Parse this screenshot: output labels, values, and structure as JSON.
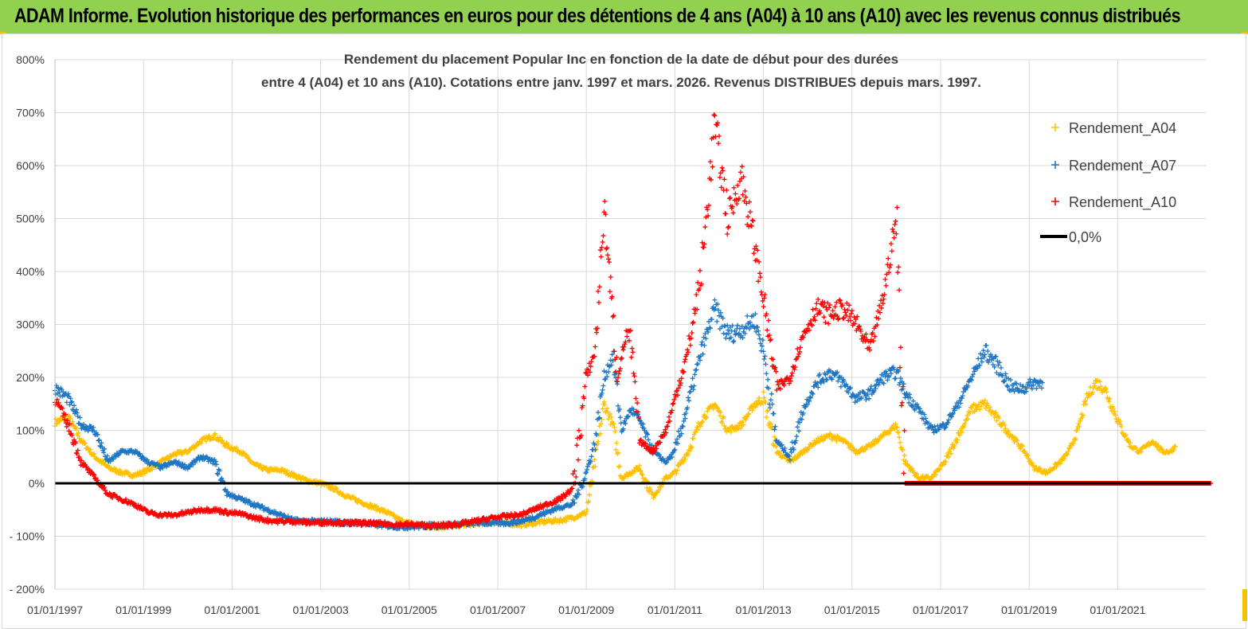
{
  "header": {
    "title": "ADAM Informe. Evolution historique des performances en euros pour des détentions de 4 ans (A04) à 10 ans (A10) avec les revenus connus distribués"
  },
  "colors": {
    "header_bg": "#92d050",
    "A04": "#ffc000",
    "A07": "#1f77c4",
    "A10": "#ff0000",
    "zero": "#000000"
  },
  "chart_data": {
    "type": "scatter",
    "title_line1": "Rendement du placement Popular Inc en fonction de la date de début pour des durées",
    "title_line2": "entre 4 (A04) et 10 ans (A10). Cotations entre janv. 1997 et mars. 2026. Revenus DISTRIBUES depuis mars. 1997.",
    "x_range": [
      1997.0,
      2023.1
    ],
    "ylim": [
      -200,
      800
    ],
    "y_ticks": [
      -200,
      -100,
      0,
      100,
      200,
      300,
      400,
      500,
      600,
      700,
      800
    ],
    "y_tick_labels": [
      "- 200%",
      "- 100%",
      "0%",
      "100%",
      "200%",
      "300%",
      "400%",
      "500%",
      "600%",
      "700%",
      "800%"
    ],
    "x_ticks": [
      1997,
      1999,
      2001,
      2003,
      2005,
      2007,
      2009,
      2011,
      2013,
      2015,
      2017,
      2019,
      2021
    ],
    "x_tick_labels": [
      "01/01/1997",
      "01/01/1999",
      "01/01/2001",
      "01/01/2003",
      "01/01/2005",
      "01/01/2007",
      "01/01/2009",
      "01/01/2011",
      "01/01/2013",
      "01/01/2015",
      "01/01/2017",
      "01/01/2019",
      "01/01/2021"
    ],
    "marker": "+",
    "legend_position": "top-right",
    "legend": [
      {
        "key": "A04",
        "label": "Rendement_A04",
        "style": "marker"
      },
      {
        "key": "A07",
        "label": "Rendement_A07",
        "style": "marker"
      },
      {
        "key": "A10",
        "label": "Rendement_A10",
        "style": "marker"
      },
      {
        "key": "zero",
        "label": "0,0%",
        "style": "line"
      }
    ],
    "series": [
      {
        "name": "Rendement_A04",
        "key": "A04",
        "points": [
          [
            1997.0,
            115
          ],
          [
            1997.3,
            125
          ],
          [
            1997.6,
            80
          ],
          [
            1997.9,
            50
          ],
          [
            1998.2,
            30
          ],
          [
            1998.5,
            20
          ],
          [
            1998.8,
            15
          ],
          [
            1999.1,
            25
          ],
          [
            1999.4,
            40
          ],
          [
            1999.7,
            55
          ],
          [
            2000.0,
            60
          ],
          [
            2000.3,
            80
          ],
          [
            2000.6,
            90
          ],
          [
            2000.9,
            70
          ],
          [
            2001.2,
            60
          ],
          [
            2001.5,
            35
          ],
          [
            2001.8,
            25
          ],
          [
            2002.1,
            25
          ],
          [
            2002.4,
            15
          ],
          [
            2002.7,
            5
          ],
          [
            2003.0,
            0
          ],
          [
            2003.3,
            -10
          ],
          [
            2003.6,
            -25
          ],
          [
            2003.9,
            -35
          ],
          [
            2004.2,
            -45
          ],
          [
            2004.5,
            -55
          ],
          [
            2004.8,
            -70
          ],
          [
            2005.1,
            -78
          ],
          [
            2005.4,
            -80
          ],
          [
            2005.7,
            -82
          ],
          [
            2006.0,
            -80
          ],
          [
            2006.3,
            -78
          ],
          [
            2006.6,
            -75
          ],
          [
            2006.9,
            -73
          ],
          [
            2007.2,
            -75
          ],
          [
            2007.5,
            -78
          ],
          [
            2007.8,
            -75
          ],
          [
            2008.1,
            -72
          ],
          [
            2008.4,
            -70
          ],
          [
            2008.7,
            -65
          ],
          [
            2009.0,
            -55
          ],
          [
            2009.2,
            40
          ],
          [
            2009.4,
            150
          ],
          [
            2009.6,
            110
          ],
          [
            2009.8,
            10
          ],
          [
            2010.0,
            20
          ],
          [
            2010.2,
            30
          ],
          [
            2010.5,
            -25
          ],
          [
            2010.8,
            10
          ],
          [
            2011.0,
            20
          ],
          [
            2011.3,
            60
          ],
          [
            2011.6,
            120
          ],
          [
            2011.9,
            150
          ],
          [
            2012.2,
            100
          ],
          [
            2012.5,
            110
          ],
          [
            2012.8,
            150
          ],
          [
            2013.0,
            160
          ],
          [
            2013.3,
            60
          ],
          [
            2013.6,
            40
          ],
          [
            2013.9,
            60
          ],
          [
            2014.2,
            80
          ],
          [
            2014.5,
            90
          ],
          [
            2014.8,
            80
          ],
          [
            2015.1,
            60
          ],
          [
            2015.4,
            70
          ],
          [
            2015.7,
            90
          ],
          [
            2016.0,
            110
          ],
          [
            2016.2,
            40
          ],
          [
            2016.5,
            10
          ],
          [
            2016.8,
            10
          ],
          [
            2017.1,
            40
          ],
          [
            2017.4,
            90
          ],
          [
            2017.7,
            140
          ],
          [
            2018.0,
            150
          ],
          [
            2018.3,
            120
          ],
          [
            2018.6,
            90
          ],
          [
            2018.9,
            60
          ],
          [
            2019.1,
            30
          ],
          [
            2019.4,
            20
          ],
          [
            2019.7,
            40
          ],
          [
            2019.9,
            60
          ],
          [
            2020.1,
            100
          ],
          [
            2020.3,
            160
          ],
          [
            2020.5,
            190
          ],
          [
            2020.7,
            180
          ],
          [
            2020.9,
            140
          ],
          [
            2021.1,
            100
          ],
          [
            2021.3,
            70
          ],
          [
            2021.5,
            60
          ],
          [
            2021.8,
            80
          ],
          [
            2022.0,
            60
          ],
          [
            2022.2,
            60
          ],
          [
            2022.3,
            70
          ]
        ]
      },
      {
        "name": "Rendement_A07",
        "key": "A07",
        "points": [
          [
            1997.0,
            180
          ],
          [
            1997.3,
            160
          ],
          [
            1997.6,
            110
          ],
          [
            1997.9,
            100
          ],
          [
            1998.2,
            40
          ],
          [
            1998.5,
            60
          ],
          [
            1998.8,
            60
          ],
          [
            1999.1,
            40
          ],
          [
            1999.4,
            30
          ],
          [
            1999.7,
            40
          ],
          [
            2000.0,
            30
          ],
          [
            2000.3,
            50
          ],
          [
            2000.6,
            40
          ],
          [
            2000.9,
            -20
          ],
          [
            2001.2,
            -30
          ],
          [
            2001.5,
            -40
          ],
          [
            2001.8,
            -50
          ],
          [
            2002.1,
            -60
          ],
          [
            2002.4,
            -70
          ],
          [
            2002.7,
            -72
          ],
          [
            2003.0,
            -72
          ],
          [
            2003.3,
            -72
          ],
          [
            2003.6,
            -75
          ],
          [
            2003.9,
            -75
          ],
          [
            2004.2,
            -78
          ],
          [
            2004.5,
            -80
          ],
          [
            2004.8,
            -82
          ],
          [
            2005.1,
            -82
          ],
          [
            2005.4,
            -80
          ],
          [
            2005.7,
            -80
          ],
          [
            2006.0,
            -78
          ],
          [
            2006.3,
            -76
          ],
          [
            2006.6,
            -75
          ],
          [
            2006.9,
            -75
          ],
          [
            2007.2,
            -75
          ],
          [
            2007.5,
            -72
          ],
          [
            2007.8,
            -65
          ],
          [
            2008.1,
            -55
          ],
          [
            2008.4,
            -45
          ],
          [
            2008.7,
            -40
          ],
          [
            2009.0,
            20
          ],
          [
            2009.2,
            80
          ],
          [
            2009.4,
            200
          ],
          [
            2009.6,
            240
          ],
          [
            2009.8,
            100
          ],
          [
            2010.0,
            140
          ],
          [
            2010.2,
            120
          ],
          [
            2010.5,
            60
          ],
          [
            2010.8,
            40
          ],
          [
            2011.0,
            60
          ],
          [
            2011.3,
            150
          ],
          [
            2011.6,
            250
          ],
          [
            2011.9,
            330
          ],
          [
            2012.2,
            280
          ],
          [
            2012.5,
            290
          ],
          [
            2012.8,
            310
          ],
          [
            2013.0,
            250
          ],
          [
            2013.3,
            80
          ],
          [
            2013.6,
            50
          ],
          [
            2013.9,
            140
          ],
          [
            2014.2,
            190
          ],
          [
            2014.5,
            210
          ],
          [
            2014.8,
            190
          ],
          [
            2015.1,
            160
          ],
          [
            2015.4,
            170
          ],
          [
            2015.7,
            200
          ],
          [
            2016.0,
            210
          ],
          [
            2016.2,
            170
          ],
          [
            2016.5,
            140
          ],
          [
            2016.8,
            100
          ],
          [
            2017.1,
            110
          ],
          [
            2017.4,
            150
          ],
          [
            2017.7,
            200
          ],
          [
            2018.0,
            250
          ],
          [
            2018.3,
            220
          ],
          [
            2018.6,
            180
          ],
          [
            2018.9,
            180
          ],
          [
            2019.1,
            190
          ],
          [
            2019.3,
            190
          ]
        ]
      },
      {
        "name": "Rendement_A10",
        "key": "A10",
        "points": [
          [
            1997.0,
            160
          ],
          [
            1997.3,
            110
          ],
          [
            1997.6,
            40
          ],
          [
            1997.9,
            10
          ],
          [
            1998.2,
            -20
          ],
          [
            1998.5,
            -30
          ],
          [
            1998.8,
            -40
          ],
          [
            1999.1,
            -55
          ],
          [
            1999.4,
            -60
          ],
          [
            1999.7,
            -60
          ],
          [
            2000.0,
            -55
          ],
          [
            2000.3,
            -50
          ],
          [
            2000.6,
            -50
          ],
          [
            2000.9,
            -55
          ],
          [
            2001.2,
            -58
          ],
          [
            2001.5,
            -65
          ],
          [
            2001.8,
            -70
          ],
          [
            2002.1,
            -72
          ],
          [
            2002.4,
            -72
          ],
          [
            2002.7,
            -74
          ],
          [
            2003.0,
            -74
          ],
          [
            2003.3,
            -74
          ],
          [
            2003.6,
            -75
          ],
          [
            2003.9,
            -75
          ],
          [
            2004.2,
            -76
          ],
          [
            2004.5,
            -77
          ],
          [
            2004.8,
            -78
          ],
          [
            2005.1,
            -78
          ],
          [
            2005.4,
            -80
          ],
          [
            2005.7,
            -80
          ],
          [
            2006.0,
            -78
          ],
          [
            2006.3,
            -75
          ],
          [
            2006.6,
            -70
          ],
          [
            2006.9,
            -65
          ],
          [
            2007.2,
            -62
          ],
          [
            2007.5,
            -60
          ],
          [
            2007.8,
            -50
          ],
          [
            2008.1,
            -40
          ],
          [
            2008.4,
            -30
          ],
          [
            2008.7,
            -10
          ],
          [
            2009.0,
            200
          ],
          [
            2009.2,
            250
          ],
          [
            2009.4,
            520
          ],
          [
            2009.5,
            420
          ],
          [
            2009.7,
            200
          ],
          [
            2009.9,
            280
          ],
          [
            2010.0,
            270
          ],
          [
            2010.2,
            80
          ],
          [
            2010.5,
            60
          ],
          [
            2010.8,
            100
          ],
          [
            2011.0,
            160
          ],
          [
            2011.3,
            250
          ],
          [
            2011.6,
            400
          ],
          [
            2011.9,
            680
          ],
          [
            2012.2,
            500
          ],
          [
            2012.5,
            580
          ],
          [
            2012.8,
            450
          ],
          [
            2013.0,
            350
          ],
          [
            2013.3,
            180
          ],
          [
            2013.6,
            200
          ],
          [
            2013.9,
            280
          ],
          [
            2014.2,
            330
          ],
          [
            2014.5,
            320
          ],
          [
            2014.8,
            330
          ],
          [
            2015.1,
            300
          ],
          [
            2015.4,
            250
          ],
          [
            2015.7,
            350
          ],
          [
            2016.0,
            500
          ],
          [
            2016.2,
            0
          ],
          [
            2016.8,
            0
          ],
          [
            2017.4,
            0
          ],
          [
            2018.0,
            0
          ],
          [
            2018.6,
            0
          ],
          [
            2019.2,
            0
          ],
          [
            2019.8,
            0
          ],
          [
            2020.4,
            0
          ],
          [
            2021.0,
            0
          ],
          [
            2021.6,
            0
          ],
          [
            2022.2,
            0
          ],
          [
            2022.8,
            0
          ],
          [
            2023.1,
            0
          ]
        ]
      }
    ]
  }
}
